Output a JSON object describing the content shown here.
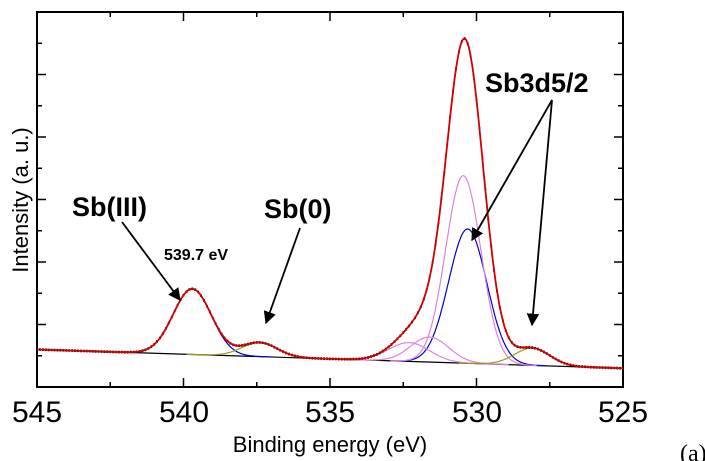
{
  "chart_data": {
    "type": "line",
    "xlabel": "Binding energy (eV)",
    "ylabel": "Intensity (a. u.)",
    "xlim": [
      545,
      525
    ],
    "ylim": [
      -0.1,
      1.1
    ],
    "x_reversed": true,
    "x_ticks": [
      "545",
      "540",
      "535",
      "530",
      "525"
    ],
    "y_tick_labels": "none",
    "panel_label": "(a)",
    "annotations": [
      {
        "id": "sb3",
        "text": "Sb(III)"
      },
      {
        "id": "sb0",
        "text": "Sb(0)"
      },
      {
        "id": "sb3d",
        "text": "Sb3d5/2"
      },
      {
        "id": "peak",
        "text": "539.7 eV"
      }
    ],
    "background": {
      "x": [
        545,
        525
      ],
      "y": [
        0.02,
        -0.04
      ]
    },
    "components": [
      {
        "color": "#0000cc",
        "center": 539.7,
        "height": 0.21,
        "sigma": 0.65
      },
      {
        "color": "#0000cc",
        "center": 530.3,
        "height": 0.43,
        "sigma": 0.65
      },
      {
        "color": "#e080e0",
        "center": 530.45,
        "height": 0.6,
        "sigma": 0.6
      },
      {
        "color": "#e080e0",
        "center": 531.6,
        "height": 0.08,
        "sigma": 0.65
      },
      {
        "color": "#e080e0",
        "center": 532.3,
        "height": 0.06,
        "sigma": 0.7
      },
      {
        "color": "#99991a",
        "center": 537.4,
        "height": 0.045,
        "sigma": 0.6
      },
      {
        "color": "#99991a",
        "center": 528.1,
        "height": 0.055,
        "sigma": 0.6
      }
    ],
    "envelope": {
      "color": "#d00000"
    },
    "raw_data": {
      "color": "#000000",
      "marker": "dots"
    },
    "colors": {
      "envelope": "#d00000",
      "raw": "#000000",
      "background": "#000000"
    }
  }
}
